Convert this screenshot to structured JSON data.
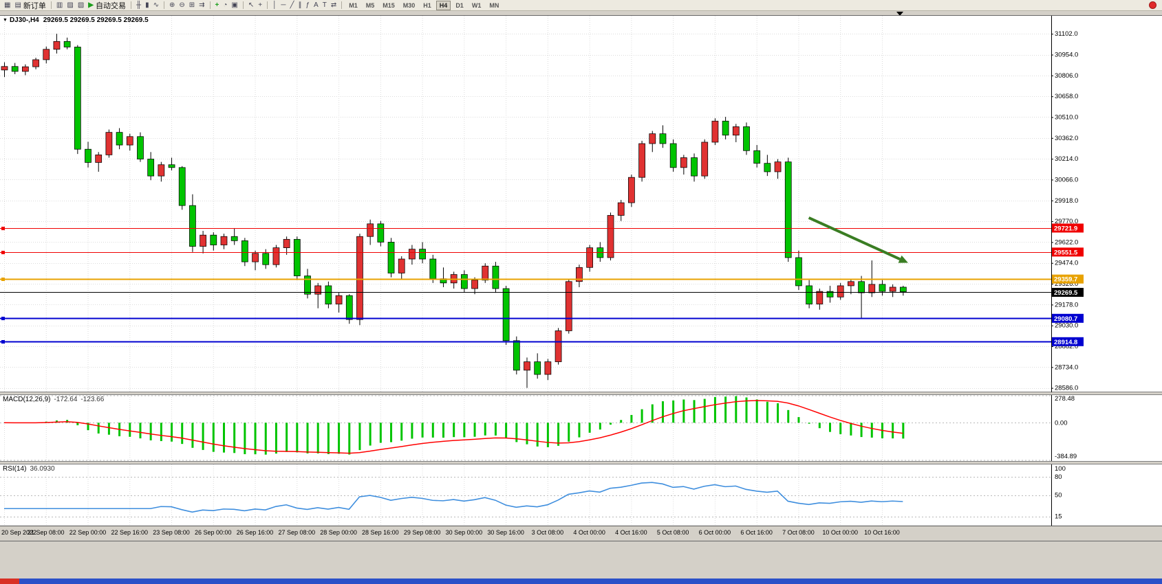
{
  "app": {
    "toolbar": {
      "new_order_label": "新订单",
      "autotrading_label": "自动交易",
      "buttons": [
        {
          "n": "new-chart-button",
          "g": "▦"
        },
        {
          "n": "new-order-button",
          "g": "▤",
          "l": "新订单"
        },
        {
          "n": "sep"
        },
        {
          "n": "profiles-button",
          "g": "▥"
        },
        {
          "n": "market-watch-button",
          "g": "▨"
        },
        {
          "n": "navigator-button",
          "g": "▧"
        },
        {
          "n": "autotrading-button",
          "g": "▶",
          "l": "自动交易",
          "c": "#1C9E1C"
        },
        {
          "n": "sep"
        },
        {
          "n": "ohlc-bars-button",
          "g": "╫"
        },
        {
          "n": "candlestick-chart-button",
          "g": "▮"
        },
        {
          "n": "line-chart-button",
          "g": "∿"
        },
        {
          "n": "sep"
        },
        {
          "n": "zoom-in-button",
          "g": "⊕"
        },
        {
          "n": "zoom-out-button",
          "g": "⊖"
        },
        {
          "n": "tile-windows-button",
          "g": "⊞"
        },
        {
          "n": "auto-scroll-button",
          "g": "⇉"
        },
        {
          "n": "sep"
        },
        {
          "n": "indicators-button",
          "g": "+",
          "c": "#1C9E1C"
        },
        {
          "n": "periods-button",
          "g": "◔"
        },
        {
          "n": "templates-button",
          "g": "▣"
        },
        {
          "n": "sep"
        },
        {
          "n": "cursor-button",
          "g": "↖"
        },
        {
          "n": "crosshair-button",
          "g": "+"
        },
        {
          "n": "sep"
        },
        {
          "n": "vertical-line-button",
          "g": "│"
        },
        {
          "n": "horizontal-line-button",
          "g": "─"
        },
        {
          "n": "trendline-button",
          "g": "╱"
        },
        {
          "n": "equidistant-channel-button",
          "g": "∥"
        },
        {
          "n": "fibonacci-button",
          "g": "ƒ"
        },
        {
          "n": "text-button",
          "g": "A"
        },
        {
          "n": "text-label-button",
          "g": "T"
        },
        {
          "n": "arrows-button",
          "g": "⇄"
        },
        {
          "n": "sep"
        }
      ],
      "timeframes": [
        "M1",
        "M5",
        "M15",
        "M30",
        "H1",
        "H4",
        "D1",
        "W1",
        "MN"
      ],
      "active_timeframe": "H4"
    }
  },
  "chart": {
    "title_symbol": "DJ30-,H4",
    "title_ohlc": "29269.5 29269.5 29269.5 29269.5"
  },
  "chart_data": {
    "type": "candlestick",
    "symbol": "DJ30-",
    "timeframe": "H4",
    "x_labels": [
      "20 Sep 2022",
      "21 Sep 08:00",
      "22 Sep 00:00",
      "22 Sep 16:00",
      "23 Sep 08:00",
      "26 Sep 00:00",
      "26 Sep 16:00",
      "27 Sep 08:00",
      "28 Sep 00:00",
      "28 Sep 16:00",
      "29 Sep 08:00",
      "30 Sep 00:00",
      "30 Sep 16:00",
      "3 Oct 08:00",
      "4 Oct 00:00",
      "4 Oct 16:00",
      "5 Oct 08:00",
      "6 Oct 00:00",
      "6 Oct 16:00",
      "7 Oct 08:00",
      "10 Oct 00:00",
      "10 Oct 16:00"
    ],
    "candles_per_label": 4,
    "price_ticks": [
      "31102.0",
      "30954.0",
      "30806.0",
      "30658.0",
      "30510.0",
      "30362.0",
      "30214.0",
      "30066.0",
      "29918.0",
      "29770.0",
      "29622.0",
      "29474.0",
      "29326.0",
      "29178.0",
      "29030.0",
      "28882.0",
      "28734.0",
      "28586.0"
    ],
    "ylim": [
      28555,
      31230
    ],
    "candles": [
      [
        30845,
        30900,
        30795,
        30870
      ],
      [
        30870,
        30895,
        30815,
        30835
      ],
      [
        30835,
        30885,
        30808,
        30868
      ],
      [
        30868,
        30932,
        30850,
        30918
      ],
      [
        30918,
        31012,
        30892,
        30992
      ],
      [
        30992,
        31102,
        30962,
        31048
      ],
      [
        31048,
        31075,
        30992,
        31008
      ],
      [
        31008,
        31022,
        30248,
        30282
      ],
      [
        30282,
        30335,
        30152,
        30188
      ],
      [
        30188,
        30262,
        30122,
        30242
      ],
      [
        30242,
        30422,
        30222,
        30402
      ],
      [
        30402,
        30432,
        30282,
        30312
      ],
      [
        30312,
        30392,
        30272,
        30372
      ],
      [
        30372,
        30402,
        30192,
        30212
      ],
      [
        30212,
        30262,
        30062,
        30092
      ],
      [
        30092,
        30192,
        30052,
        30172
      ],
      [
        30172,
        30222,
        30132,
        30152
      ],
      [
        30152,
        30162,
        29852,
        29882
      ],
      [
        29882,
        29962,
        29552,
        29592
      ],
      [
        29592,
        29702,
        29542,
        29672
      ],
      [
        29672,
        29692,
        29562,
        29602
      ],
      [
        29602,
        29682,
        29572,
        29662
      ],
      [
        29662,
        29722,
        29602,
        29632
      ],
      [
        29632,
        29652,
        29452,
        29482
      ],
      [
        29482,
        29562,
        29422,
        29542
      ],
      [
        29542,
        29572,
        29432,
        29462
      ],
      [
        29462,
        29602,
        29442,
        29582
      ],
      [
        29582,
        29662,
        29532,
        29642
      ],
      [
        29642,
        29662,
        29352,
        29382
      ],
      [
        29382,
        29432,
        29222,
        29252
      ],
      [
        29252,
        29332,
        29152,
        29312
      ],
      [
        29312,
        29342,
        29152,
        29182
      ],
      [
        29182,
        29262,
        29122,
        29242
      ],
      [
        29242,
        29252,
        29042,
        29072
      ],
      [
        29072,
        29682,
        29032,
        29662
      ],
      [
        29662,
        29782,
        29602,
        29752
      ],
      [
        29752,
        29772,
        29592,
        29622
      ],
      [
        29622,
        29652,
        29372,
        29402
      ],
      [
        29402,
        29522,
        29362,
        29502
      ],
      [
        29502,
        29602,
        29462,
        29572
      ],
      [
        29572,
        29622,
        29472,
        29502
      ],
      [
        29502,
        29532,
        29332,
        29362
      ],
      [
        29362,
        29442,
        29302,
        29332
      ],
      [
        29332,
        29412,
        29292,
        29392
      ],
      [
        29392,
        29422,
        29262,
        29292
      ],
      [
        29292,
        29372,
        29252,
        29352
      ],
      [
        29352,
        29472,
        29332,
        29452
      ],
      [
        29452,
        29482,
        29262,
        29292
      ],
      [
        29292,
        29312,
        28892,
        28922
      ],
      [
        28922,
        28952,
        28682,
        28712
      ],
      [
        28712,
        28802,
        28586,
        28772
      ],
      [
        28772,
        28832,
        28652,
        28682
      ],
      [
        28682,
        28792,
        28642,
        28772
      ],
      [
        28772,
        29012,
        28752,
        28992
      ],
      [
        28992,
        29362,
        28972,
        29342
      ],
      [
        29342,
        29462,
        29302,
        29442
      ],
      [
        29442,
        29602,
        29412,
        29582
      ],
      [
        29582,
        29622,
        29482,
        29512
      ],
      [
        29512,
        29832,
        29492,
        29812
      ],
      [
        29812,
        29922,
        29772,
        29902
      ],
      [
        29902,
        30102,
        29872,
        30082
      ],
      [
        30082,
        30342,
        30052,
        30322
      ],
      [
        30322,
        30412,
        30262,
        30392
      ],
      [
        30392,
        30452,
        30292,
        30322
      ],
      [
        30322,
        30352,
        30122,
        30152
      ],
      [
        30152,
        30242,
        30102,
        30222
      ],
      [
        30222,
        30252,
        30052,
        30092
      ],
      [
        30092,
        30352,
        30072,
        30332
      ],
      [
        30332,
        30502,
        30312,
        30482
      ],
      [
        30482,
        30512,
        30352,
        30382
      ],
      [
        30382,
        30462,
        30332,
        30442
      ],
      [
        30442,
        30472,
        30242,
        30272
      ],
      [
        30272,
        30312,
        30152,
        30182
      ],
      [
        30182,
        30242,
        30092,
        30122
      ],
      [
        30122,
        30212,
        30072,
        30192
      ],
      [
        30192,
        30222,
        29482,
        29512
      ],
      [
        29512,
        29562,
        29282,
        29312
      ],
      [
        29312,
        29352,
        29152,
        29182
      ],
      [
        29182,
        29292,
        29142,
        29272
      ],
      [
        29272,
        29312,
        29192,
        29232
      ],
      [
        29232,
        29332,
        29212,
        29312
      ],
      [
        29312,
        29362,
        29252,
        29342
      ],
      [
        29342,
        29382,
        29082,
        29262
      ],
      [
        29262,
        29492,
        29232,
        29322
      ],
      [
        29322,
        29352,
        29242,
        29272
      ],
      [
        29272,
        29322,
        29232,
        29302
      ],
      [
        29302,
        29312,
        29242,
        29269.5
      ]
    ],
    "hlines": [
      {
        "price": 29721.9,
        "badge": "29721.9",
        "color": "#F00000",
        "width": 1
      },
      {
        "price": 29551.5,
        "badge": "29551.5",
        "color": "#F00000",
        "width": 1
      },
      {
        "price": 29359.7,
        "badge": "29359.7",
        "color": "#E8A200",
        "width": 2
      },
      {
        "price": 29080.7,
        "badge": "29080.7",
        "color": "#0000D0",
        "width": 2
      },
      {
        "price": 28914.8,
        "badge": "28914.8",
        "color": "#0000D0",
        "width": 2
      }
    ],
    "current_price": {
      "value": 29269.5,
      "badge": "29269.5",
      "color": "#000000"
    },
    "trend_arrow": {
      "from_candle": 77,
      "from_price": 29795,
      "to_candle": 86.5,
      "to_price": 29475,
      "color": "#3A7D23"
    },
    "indicators": {
      "macd": {
        "label": "MACD(12,26,9)",
        "value1": "-172.64",
        "value2": "-123.66",
        "fast": 12,
        "slow": 26,
        "signal": 9,
        "axis_ticks": [
          "278.48",
          "0.00",
          "-384.89"
        ],
        "ylim": [
          -384.89,
          278.48
        ],
        "bar_color": "#00C400",
        "line_color": "#FF0000"
      },
      "rsi": {
        "label": "RSI(14)",
        "value": "36.0930",
        "period": 14,
        "axis_ticks": [
          "100",
          "80",
          "50",
          "15"
        ],
        "levels": [
          80,
          50,
          15
        ],
        "ylim": [
          0,
          100
        ],
        "line_color": "#3E8EDE"
      }
    },
    "colors": {
      "bull": "#E03232",
      "bear": "#00C400",
      "wick": "#000000",
      "grid": "#DBDBDB",
      "axis_text": "#000000",
      "level_dash": "#B8B8B8",
      "taskbar_blue": "#2B50C8",
      "taskbar_red": "#D93025"
    }
  }
}
